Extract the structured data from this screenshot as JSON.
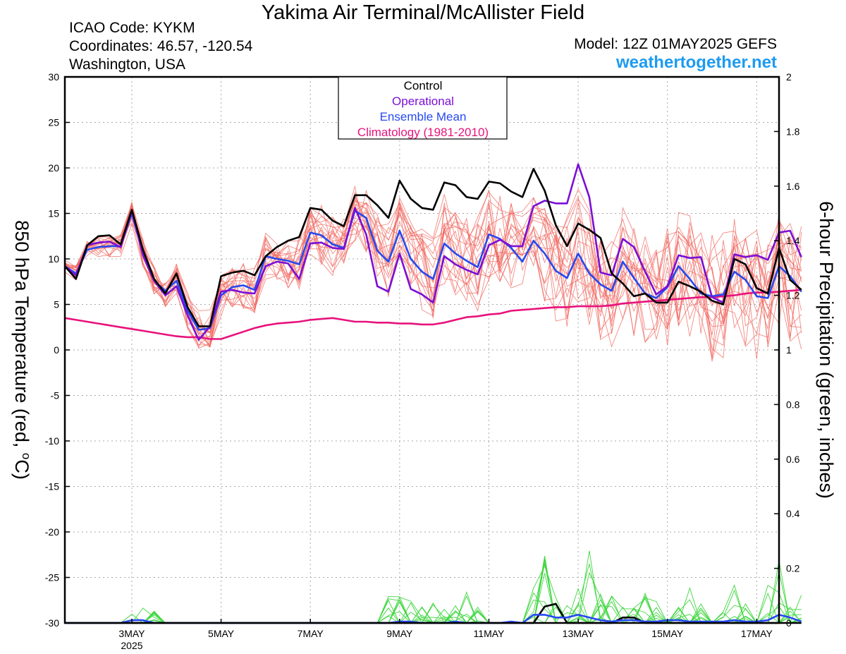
{
  "header": {
    "title": "Yakima Air Terminal/McAllister Field",
    "icao": "ICAO Code: KYKM",
    "coords": "Coordinates: 46.57, -120.54",
    "region": "Washington, USA",
    "model": "Model: 12Z 01MAY2025 GEFS",
    "site": "weathertogether.net"
  },
  "colors": {
    "control": "#000000",
    "operational": "#7b0fd6",
    "ensemble_mean": "#2649f0",
    "climatology": "#e8127c",
    "ensemble_members": "#f0645c",
    "precip_members": "#3fd63f",
    "site_link": "#1e9bf0"
  },
  "chart_data": {
    "type": "line",
    "title": "Yakima Air Terminal/McAllister Field",
    "ylabel": "850 hPa Temperature (red, °C)",
    "ylabel_parts": [
      "850 hPa Temperature (red, ",
      "o",
      "C)"
    ],
    "y2label": "6-hour Precipitation (green, inches)",
    "ylim": [
      -30,
      30
    ],
    "y2lim": [
      0,
      2
    ],
    "xlim": [
      "2025-05-01T12",
      "2025-05-17T12"
    ],
    "x_step_hours": 6,
    "grid": true,
    "legend_position": "top-center",
    "legend": [
      "Control",
      "Operational",
      "Ensemble Mean",
      "Climatology (1981-2010)"
    ],
    "yticks": [
      30,
      25,
      20,
      15,
      10,
      5,
      0,
      -5,
      -10,
      -15,
      -20,
      -25,
      -30
    ],
    "y2ticks": [
      2,
      1.8,
      1.6,
      1.4,
      1.2,
      1,
      0.8,
      0.6,
      0.4,
      0.2,
      0
    ],
    "xticks": [
      {
        "label": "3MAY",
        "sub": "2025",
        "x": "2025-05-03T00"
      },
      {
        "label": "5MAY",
        "sub": "",
        "x": "2025-05-05T00"
      },
      {
        "label": "7MAY",
        "sub": "",
        "x": "2025-05-07T00"
      },
      {
        "label": "9MAY",
        "sub": "",
        "x": "2025-05-09T00"
      },
      {
        "label": "11MAY",
        "sub": "",
        "x": "2025-05-11T00"
      },
      {
        "label": "13MAY",
        "sub": "",
        "x": "2025-05-13T00"
      },
      {
        "label": "15MAY",
        "sub": "",
        "x": "2025-05-15T00"
      },
      {
        "label": "17MAY",
        "sub": "",
        "x": "2025-05-17T00"
      }
    ],
    "series": [
      {
        "name": "Control",
        "values": [
          9.2,
          7.8,
          11.5,
          12.5,
          12.6,
          11.6,
          15.4,
          11.0,
          7.8,
          6.2,
          8.4,
          4.7,
          2.6,
          2.6,
          8.1,
          8.5,
          8.7,
          8.2,
          10.3,
          11.3,
          12.0,
          12.4,
          15.6,
          15.4,
          14.2,
          13.6,
          17.0,
          17.0,
          15.9,
          14.5,
          18.6,
          16.6,
          15.6,
          15.4,
          18.4,
          18.1,
          16.8,
          16.6,
          18.5,
          18.3,
          17.4,
          16.8,
          19.9,
          17.5,
          13.7,
          11.4,
          13.9,
          13.2,
          12.3,
          8.4,
          7.3,
          5.9,
          6.2,
          5.2,
          5.2,
          7.5,
          7.0,
          6.4,
          5.4,
          5.0,
          10.0,
          9.4,
          6.8,
          6.2,
          11.2,
          7.7,
          6.6
        ]
      },
      {
        "name": "Operational",
        "values": [
          9.2,
          8.2,
          11.5,
          11.8,
          11.9,
          11.3,
          15.3,
          10.4,
          7.6,
          6.0,
          7.0,
          3.8,
          1.1,
          2.6,
          6.4,
          6.6,
          6.3,
          6.2,
          9.2,
          9.7,
          9.5,
          7.8,
          11.7,
          11.8,
          11.2,
          11.1,
          15.6,
          12.7,
          7.0,
          6.4,
          10.6,
          6.7,
          6.1,
          5.2,
          10.3,
          9.4,
          8.8,
          8.3,
          11.5,
          12.1,
          11.4,
          11.4,
          15.8,
          16.4,
          16.1,
          16.1,
          20.4,
          16.8,
          8.5,
          8.2,
          12.2,
          11.3,
          8.6,
          6.1,
          7.0,
          10.4,
          10.1,
          10.2,
          5.8,
          5.2,
          10.5,
          10.2,
          10.4,
          9.9,
          12.9,
          13.1,
          10.2
        ]
      },
      {
        "name": "Ensemble Mean",
        "values": [
          9.2,
          8.4,
          11.0,
          11.3,
          11.4,
          11.4,
          15.0,
          10.6,
          7.6,
          6.5,
          7.6,
          4.3,
          2.2,
          2.4,
          6.0,
          6.9,
          7.1,
          6.6,
          10.3,
          10.0,
          9.8,
          9.4,
          12.9,
          12.6,
          11.6,
          11.2,
          15.3,
          14.5,
          10.9,
          9.7,
          13.1,
          10.0,
          8.6,
          7.8,
          11.7,
          10.6,
          9.8,
          9.1,
          12.7,
          12.2,
          11.2,
          9.7,
          12.0,
          10.6,
          8.7,
          7.9,
          10.6,
          8.4,
          7.2,
          6.5,
          9.7,
          7.9,
          6.2,
          5.7,
          6.9,
          9.2,
          7.8,
          6.2,
          5.9,
          6.1,
          8.6,
          7.7,
          5.9,
          5.7,
          9.2,
          8.1,
          6.4
        ]
      },
      {
        "name": "Climatology (1981-2010)",
        "values": [
          3.5,
          3.3,
          3.1,
          2.9,
          2.7,
          2.5,
          2.3,
          2.1,
          1.9,
          1.7,
          1.5,
          1.4,
          1.4,
          1.2,
          1.2,
          1.6,
          2.0,
          2.4,
          2.7,
          2.9,
          3.0,
          3.1,
          3.3,
          3.4,
          3.5,
          3.3,
          3.1,
          3.1,
          3.0,
          3.0,
          2.9,
          2.9,
          2.8,
          2.8,
          3.0,
          3.3,
          3.6,
          3.7,
          3.9,
          4.0,
          4.3,
          4.4,
          4.5,
          4.6,
          4.7,
          4.7,
          4.8,
          4.8,
          4.8,
          4.9,
          5.1,
          5.2,
          5.3,
          5.4,
          5.5,
          5.6,
          5.7,
          5.8,
          5.8,
          5.9,
          6.0,
          6.2,
          6.3,
          6.3,
          6.4,
          6.5,
          6.6
        ]
      },
      {
        "name": "Control precipitation",
        "values": [
          0,
          0,
          0,
          0,
          0,
          0,
          0,
          0,
          0,
          0,
          0,
          0,
          0,
          0,
          0,
          0,
          0,
          0,
          0,
          0,
          0,
          0,
          0,
          0,
          0,
          0,
          0,
          0,
          0,
          0,
          0,
          0,
          0,
          0,
          0,
          0,
          0,
          0,
          0,
          0,
          0,
          0,
          0,
          0.06,
          0.07,
          0,
          0,
          0,
          0,
          0,
          0.02,
          0.02,
          0,
          0,
          0,
          0,
          0,
          0,
          0,
          0,
          0,
          0,
          0,
          0,
          0,
          0,
          0
        ]
      },
      {
        "name": "Ensemble mean precipitation",
        "values": [
          0,
          0,
          0,
          0,
          0,
          0,
          0.01,
          0.01,
          0,
          0,
          0,
          0,
          0,
          0,
          0,
          0,
          0,
          0,
          0,
          0,
          0,
          0,
          0,
          0,
          0,
          0,
          0,
          0,
          0,
          0,
          0.005,
          0.005,
          0,
          0,
          0,
          0.005,
          0,
          0,
          0,
          0,
          0.005,
          0,
          0.03,
          0.03,
          0.02,
          0.02,
          0.03,
          0.02,
          0.01,
          0.005,
          0.01,
          0.01,
          0.005,
          0.005,
          0.01,
          0.01,
          0.005,
          0.005,
          0.005,
          0.005,
          0.01,
          0.005,
          0.005,
          0.01,
          0.03,
          0.02,
          0.005
        ]
      }
    ]
  }
}
